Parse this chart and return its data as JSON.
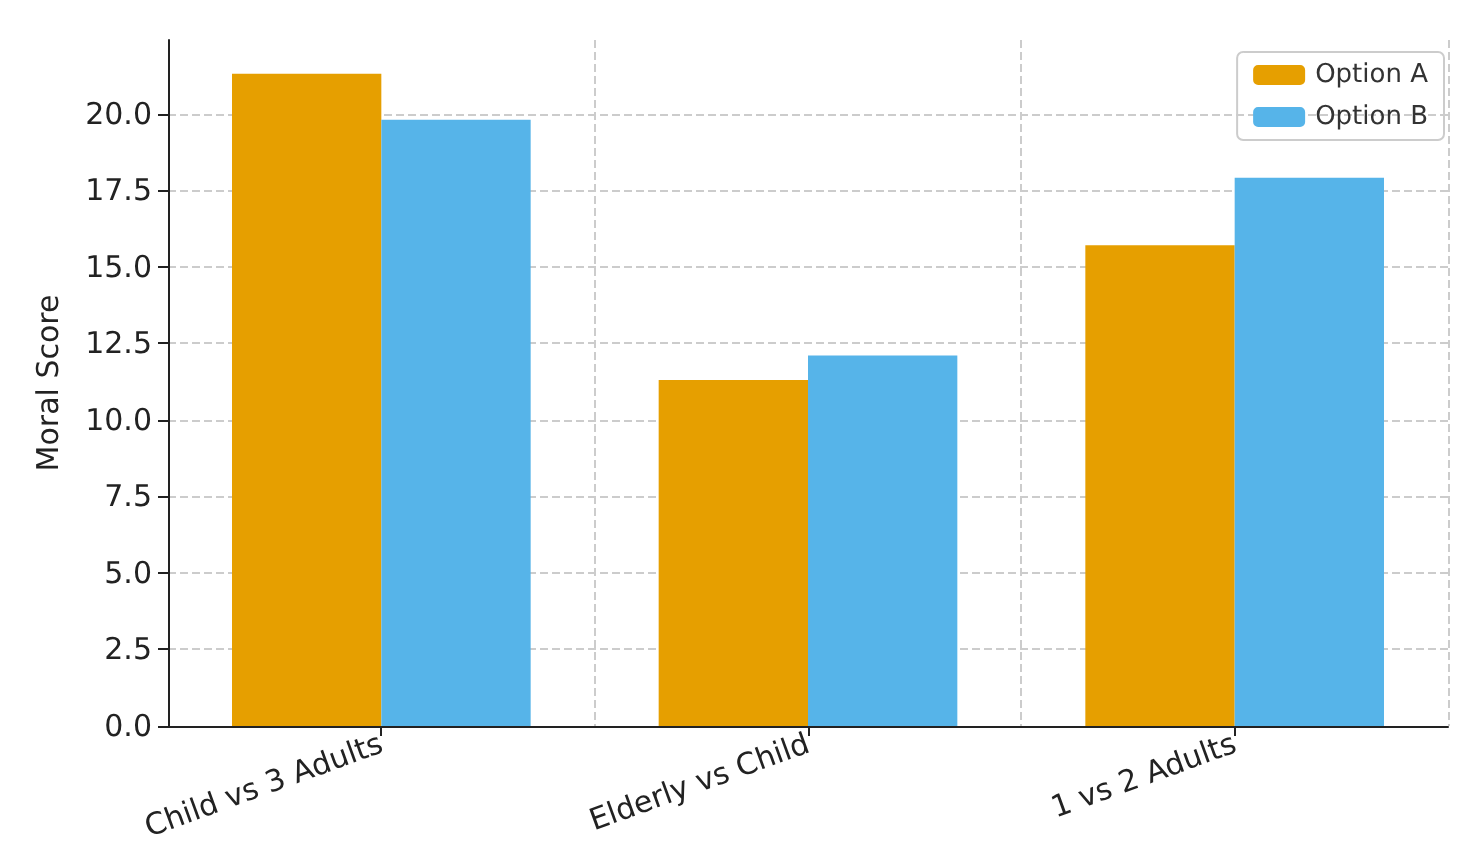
{
  "chart_data": {
    "type": "bar",
    "ylabel": "Moral Score",
    "categories": [
      "Child vs 3 Adults",
      "Elderly vs Child",
      "1 vs 2 Adults"
    ],
    "series": [
      {
        "name": "Option A",
        "color": "#e69f00",
        "values": [
          21.3,
          11.3,
          15.7
        ]
      },
      {
        "name": "Option B",
        "color": "#56b4e9",
        "values": [
          19.8,
          12.1,
          17.9
        ]
      }
    ],
    "ylim": [
      0,
      22.4
    ],
    "yticks": [
      {
        "value": 0,
        "label": "0.0"
      },
      {
        "value": 2.5,
        "label": "2.5"
      },
      {
        "value": 5,
        "label": "5.0"
      },
      {
        "value": 7.5,
        "label": "7.5"
      },
      {
        "value": 10,
        "label": "10.0"
      },
      {
        "value": 12.5,
        "label": "12.5"
      },
      {
        "value": 15,
        "label": "15.0"
      },
      {
        "value": 17.5,
        "label": "17.5"
      },
      {
        "value": 20,
        "label": "20.0"
      }
    ],
    "grid": true,
    "legend": "top right"
  }
}
